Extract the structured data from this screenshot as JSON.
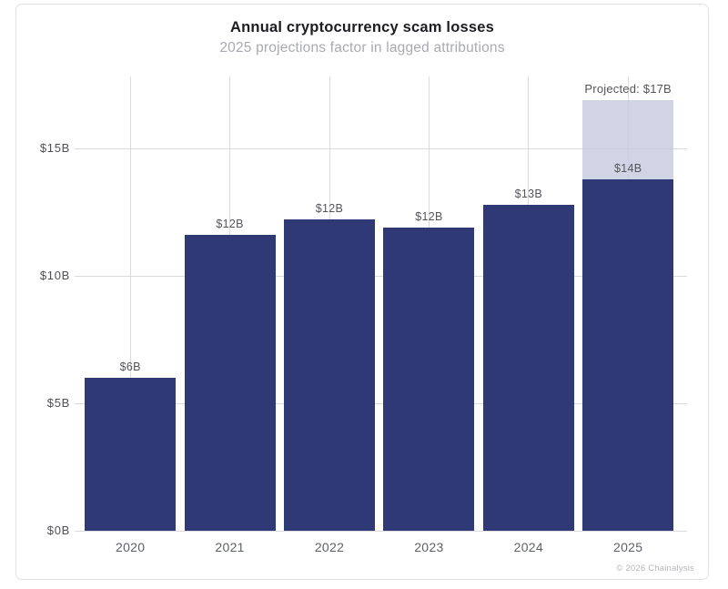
{
  "header": {
    "title": "Annual cryptocurrency scam losses",
    "subtitle": "2025 projections factor in lagged attributions"
  },
  "chart_data": {
    "type": "bar",
    "title": "Annual cryptocurrency scam losses",
    "subtitle": "2025 projections factor in lagged attributions",
    "categories": [
      "2020",
      "2021",
      "2022",
      "2023",
      "2024",
      "2025"
    ],
    "values": [
      6.0,
      11.6,
      12.2,
      11.9,
      12.8,
      13.8
    ],
    "bar_labels": [
      "$6B",
      "$12B",
      "$12B",
      "$12B",
      "$13B",
      "$14B"
    ],
    "projected": {
      "category": "2025",
      "total": 16.9,
      "label": "Projected: $17B"
    },
    "y_ticks": [
      {
        "value": 0,
        "label": "$0B"
      },
      {
        "value": 5,
        "label": "$5B"
      },
      {
        "value": 10,
        "label": "$10B"
      },
      {
        "value": 15,
        "label": "$15B"
      }
    ],
    "ylim": [
      0,
      17.8
    ],
    "grid": "horizontal-and-vertical",
    "legend_position": "none",
    "colors": {
      "bar": "#2f3976",
      "projected_segment": "#d4d6e4",
      "gridline": "#d9d9de"
    }
  },
  "footer": {
    "copyright": "© 2026 Chainalysis"
  }
}
